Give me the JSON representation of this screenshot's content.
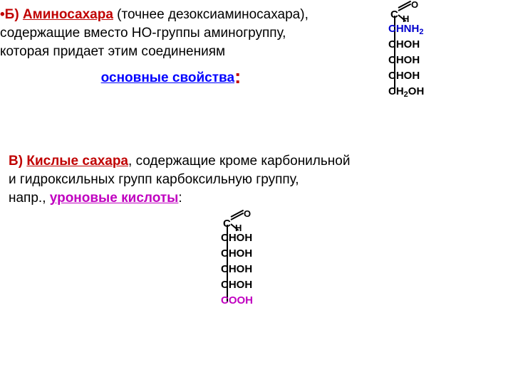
{
  "sectionB": {
    "bullet": "•",
    "label": "Б)",
    "title": "Аминосахара",
    "rest1": " (точнее дезоксиаминосахара),",
    "line2": " содержащие вместо НО-группы аминогруппу,",
    "line3": " которая  придает этим соединениям",
    "mainProp": "основные свойства",
    "colon": ":"
  },
  "sectionC": {
    "label": "В)",
    "title": "Кислые сахара",
    "rest1": ", содержащие кроме карбонильной",
    "line2": "и гидроксильных групп карбоксильную группу,",
    "napr": "напр., ",
    "uronic": "уроновые кислоты",
    "colon": ":"
  },
  "formulaB": {
    "aldehyde": {
      "c": "C",
      "h": "H",
      "o": "O"
    },
    "r1": "CHNH",
    "r1sub": "2",
    "r2": "CHOH",
    "r3": "CHOH",
    "r4": "CHOH",
    "r5": "CH",
    "r5sub": "2",
    "r5rest": "OH"
  },
  "formulaC": {
    "aldehyde": {
      "c": "C",
      "h": "H",
      "o": "O"
    },
    "r1": "CHOH",
    "r2": "CHOH",
    "r3": "CHOH",
    "r4": "CHOH",
    "r5": "COOH"
  },
  "colors": {
    "red": "#c00000",
    "blue": "#0000cc",
    "magenta": "#c000c0",
    "black": "#000000",
    "bg": "#ffffff"
  }
}
